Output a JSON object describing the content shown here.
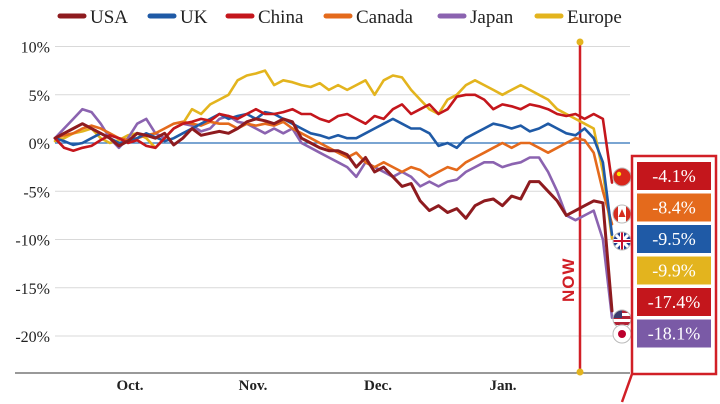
{
  "chart_data": {
    "type": "line",
    "x_ticks": [
      "Oct.",
      "Nov.",
      "Dec.",
      "Jan."
    ],
    "y_ticks": [
      "10%",
      "5%",
      "0%",
      "-5%",
      "-10%",
      "-15%",
      "-20%"
    ],
    "ylim": [
      -24,
      10.5
    ],
    "now_label": "NOW",
    "legend_position": "top",
    "series": [
      {
        "name": "USA",
        "color": "#8e1b1f",
        "final_label": "-17.4%",
        "label_bg": "#c4161c",
        "values": [
          0.5,
          1.0,
          1.5,
          2.0,
          1.5,
          1.0,
          0.5,
          -0.3,
          0.2,
          1.0,
          0.8,
          0.5,
          1.0,
          -0.2,
          0.5,
          1.5,
          0.8,
          1.0,
          1.2,
          1.0,
          1.5,
          2.2,
          2.5,
          2.3,
          2.0,
          2.5,
          2.2,
          0.5,
          0.0,
          -0.5,
          -0.8,
          -0.8,
          -1.2,
          -2.5,
          -1.5,
          -3.0,
          -2.5,
          -3.5,
          -4.5,
          -4.2,
          -6.0,
          -7.0,
          -6.5,
          -7.2,
          -6.8,
          -7.8,
          -6.5,
          -6.0,
          -5.8,
          -6.5,
          -5.5,
          -5.8,
          -4.0,
          -4.0,
          -5.0,
          -6.0,
          -7.5,
          -7.0,
          -6.5,
          -6.0,
          -6.2,
          -17.4
        ]
      },
      {
        "name": "UK",
        "color": "#1f5aa6",
        "final_label": "-9.5%",
        "label_bg": "#1f5aa6",
        "values": [
          0.5,
          0.2,
          -0.2,
          0.0,
          0.5,
          1.0,
          0.5,
          0.0,
          0.2,
          0.5,
          1.0,
          0.6,
          0.2,
          0.5,
          1.0,
          1.5,
          2.0,
          2.5,
          3.0,
          2.5,
          2.8,
          3.0,
          2.5,
          3.2,
          3.0,
          2.5,
          2.0,
          1.5,
          1.0,
          0.8,
          0.5,
          0.8,
          0.5,
          0.5,
          1.0,
          1.5,
          2.0,
          2.5,
          2.0,
          1.5,
          1.5,
          1.0,
          -0.3,
          0.0,
          -0.5,
          0.5,
          1.0,
          1.5,
          2.0,
          1.8,
          1.5,
          1.8,
          1.2,
          1.5,
          2.0,
          1.5,
          1.0,
          0.8,
          1.5,
          0.5,
          -2.0,
          -9.5
        ]
      },
      {
        "name": "China",
        "color": "#c4161c",
        "final_label": "-4.1%",
        "label_bg": "#c4161c",
        "values": [
          0.5,
          -0.5,
          -0.8,
          -0.5,
          -0.3,
          0.3,
          0.8,
          0.5,
          0.0,
          0.3,
          -0.3,
          -0.5,
          0.5,
          1.5,
          2.0,
          2.2,
          2.5,
          2.3,
          3.0,
          2.8,
          2.5,
          3.0,
          3.5,
          3.0,
          3.0,
          3.2,
          3.5,
          3.0,
          3.0,
          2.5,
          2.2,
          2.8,
          3.0,
          2.5,
          2.0,
          2.8,
          2.5,
          3.5,
          4.0,
          3.0,
          3.5,
          4.0,
          3.0,
          3.5,
          4.8,
          5.0,
          5.0,
          4.5,
          3.5,
          4.0,
          3.8,
          3.5,
          4.0,
          3.8,
          3.5,
          3.0,
          2.8,
          3.0,
          2.5,
          3.0,
          2.5,
          -4.1
        ]
      },
      {
        "name": "Canada",
        "color": "#e46a1c",
        "final_label": "-8.4%",
        "label_bg": "#e46a1c",
        "values": [
          0.5,
          0.8,
          1.0,
          1.5,
          1.8,
          1.5,
          1.0,
          0.5,
          0.3,
          0.5,
          0.8,
          1.0,
          1.5,
          2.0,
          2.2,
          2.0,
          1.8,
          2.2,
          2.0,
          2.0,
          1.5,
          2.0,
          1.8,
          2.0,
          1.8,
          2.2,
          1.5,
          1.0,
          0.5,
          0.0,
          -0.5,
          -1.0,
          -1.5,
          -1.0,
          -2.0,
          -2.5,
          -2.0,
          -2.5,
          -3.0,
          -2.5,
          -2.8,
          -3.5,
          -3.0,
          -2.5,
          -2.8,
          -2.0,
          -1.5,
          -1.0,
          -0.5,
          0.0,
          -0.5,
          0.0,
          0.0,
          -0.5,
          -1.0,
          -0.5,
          0.0,
          0.5,
          0.3,
          -1.0,
          -5.0,
          -8.4
        ]
      },
      {
        "name": "Japan",
        "color": "#8b63b0",
        "final_label": "-18.1%",
        "label_bg": "#7a5aa6",
        "values": [
          0.5,
          1.5,
          2.5,
          3.5,
          3.2,
          2.0,
          0.5,
          -0.5,
          0.5,
          2.0,
          2.5,
          1.0,
          0.5,
          1.5,
          2.0,
          1.8,
          1.2,
          1.5,
          2.5,
          2.8,
          2.2,
          2.0,
          1.5,
          1.0,
          1.5,
          1.0,
          1.5,
          0.0,
          -0.5,
          -1.0,
          -1.5,
          -2.0,
          -2.5,
          -3.5,
          -2.0,
          -2.5,
          -3.0,
          -3.5,
          -3.0,
          -3.5,
          -4.5,
          -4.0,
          -4.5,
          -4.0,
          -3.8,
          -3.0,
          -2.5,
          -2.0,
          -2.0,
          -2.5,
          -2.2,
          -2.0,
          -1.5,
          -1.5,
          -3.0,
          -5.0,
          -7.5,
          -8.0,
          -7.5,
          -7.0,
          -10.0,
          -18.1
        ]
      },
      {
        "name": "Europe",
        "color": "#e3b41e",
        "final_label": "-9.9%",
        "label_bg": "#e3b41e",
        "values": [
          0.2,
          0.5,
          1.0,
          1.2,
          1.5,
          0.5,
          0.0,
          0.3,
          0.8,
          1.0,
          0.5,
          -0.5,
          0.5,
          1.5,
          2.0,
          3.5,
          3.0,
          4.0,
          4.5,
          5.0,
          6.5,
          7.0,
          7.2,
          7.5,
          6.0,
          6.5,
          6.3,
          6.0,
          5.8,
          6.2,
          5.5,
          6.0,
          5.5,
          6.0,
          6.5,
          5.0,
          6.5,
          7.0,
          6.8,
          5.5,
          4.5,
          3.5,
          3.0,
          4.5,
          5.0,
          6.0,
          6.5,
          6.0,
          5.5,
          5.0,
          5.5,
          6.0,
          5.5,
          5.0,
          4.5,
          3.5,
          3.0,
          2.5,
          2.0,
          1.5,
          -3.0,
          -9.9
        ]
      }
    ]
  }
}
